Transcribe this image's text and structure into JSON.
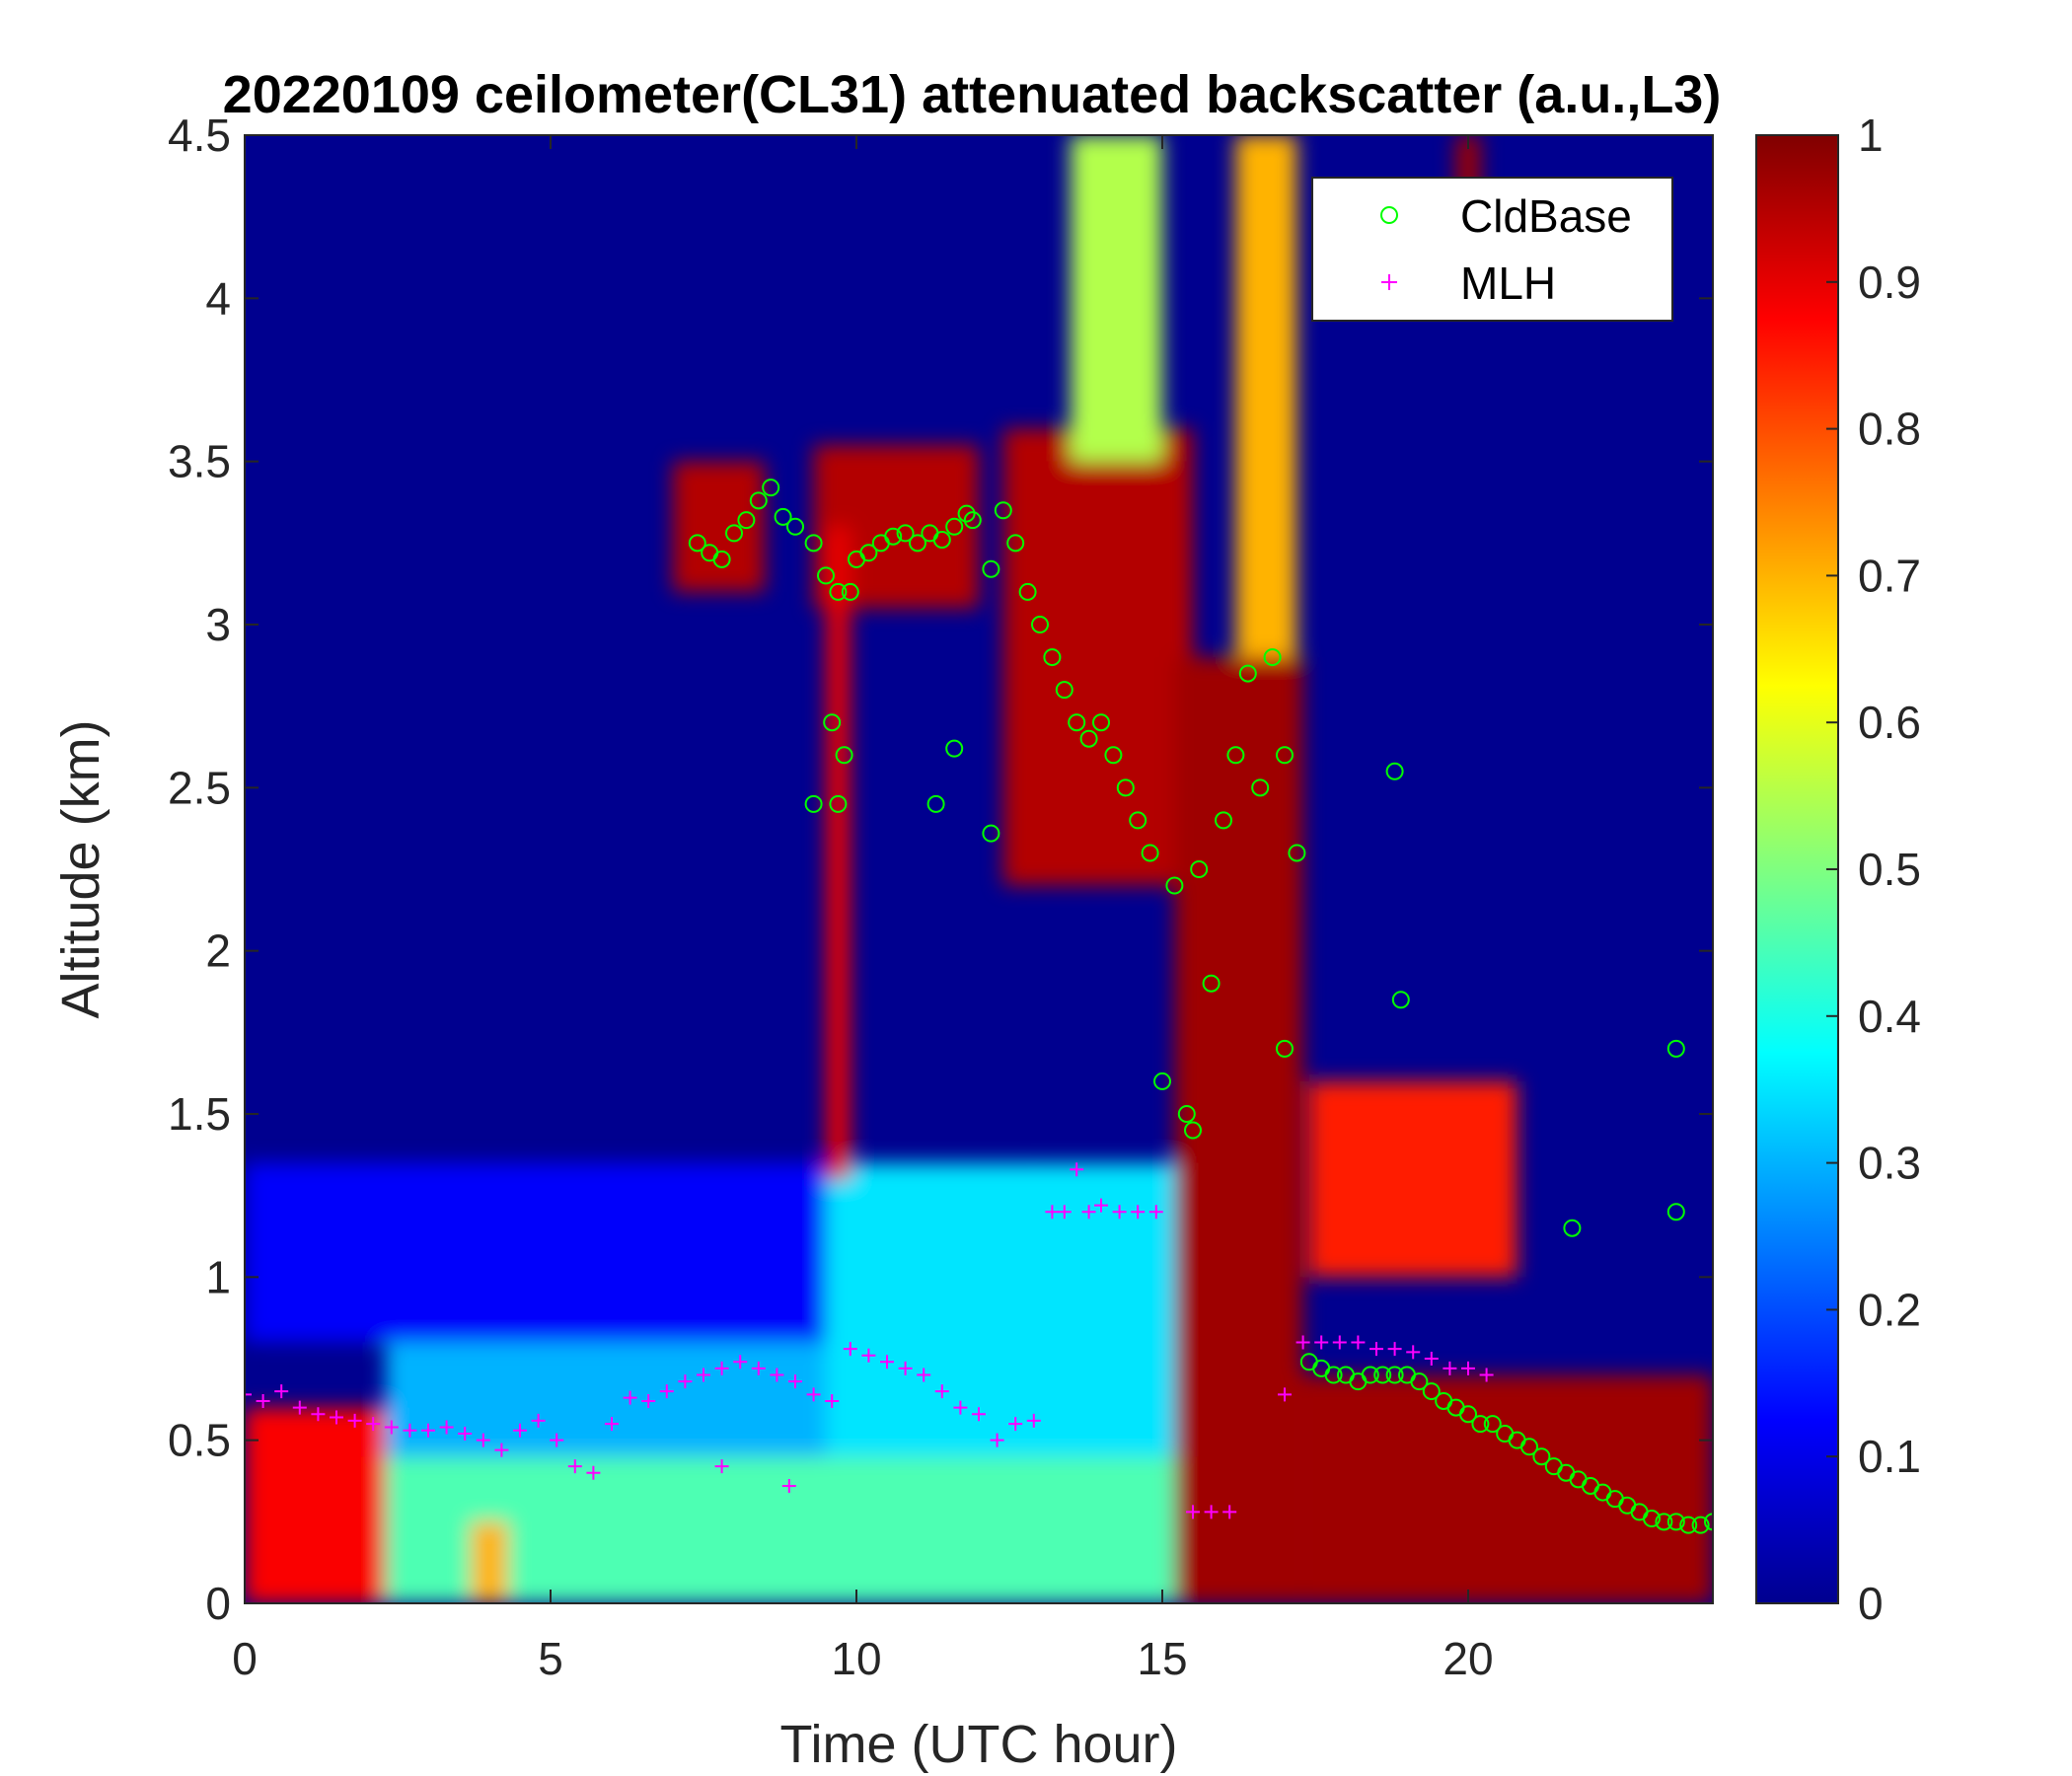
{
  "chart_data": {
    "type": "heatmap",
    "title": "20220109 ceilometer(CL31) attenuated backscatter (a.u.,L3)",
    "xlabel": "Time (UTC hour)",
    "ylabel": "Altitude (km)",
    "xlim": [
      0,
      24
    ],
    "ylim": [
      0,
      4.5
    ],
    "xticks": [
      "0",
      "5",
      "10",
      "15",
      "20"
    ],
    "yticks": [
      "0",
      "0.5",
      "1",
      "1.5",
      "2",
      "2.5",
      "3",
      "3.5",
      "4",
      "4.5"
    ],
    "colorbar": {
      "colormap": "jet",
      "range": [
        0,
        1
      ],
      "ticks": [
        "0",
        "0.1",
        "0.2",
        "0.3",
        "0.4",
        "0.5",
        "0.6",
        "0.7",
        "0.8",
        "0.9",
        "1"
      ]
    },
    "legend": {
      "position": "top-right",
      "entries": [
        {
          "name": "CldBase",
          "marker": "circle",
          "color": "#00ff00"
        },
        {
          "name": "MLH",
          "marker": "plus",
          "color": "#ff00ff"
        }
      ]
    },
    "background_regions": [
      {
        "x0": 0,
        "x1": 2.3,
        "y0": 0,
        "y1": 0.6,
        "value": 0.88
      },
      {
        "x0": 2.3,
        "x1": 15.3,
        "y0": 0,
        "y1": 0.45,
        "value": 0.45
      },
      {
        "x0": 2.3,
        "x1": 9.5,
        "y0": 0.45,
        "y1": 0.8,
        "value": 0.3
      },
      {
        "x0": 0,
        "x1": 13,
        "y0": 0.8,
        "y1": 1.35,
        "value": 0.12
      },
      {
        "x0": 9.5,
        "x1": 15.3,
        "y0": 0.45,
        "y1": 1.35,
        "value": 0.35
      },
      {
        "x0": 3.7,
        "x1": 4.3,
        "y0": 0,
        "y1": 0.25,
        "value": 0.7
      },
      {
        "x0": 7.0,
        "x1": 8.5,
        "y0": 3.1,
        "y1": 3.5,
        "value": 0.95
      },
      {
        "x0": 9.3,
        "x1": 12.0,
        "y0": 3.05,
        "y1": 3.55,
        "value": 0.95
      },
      {
        "x0": 9.5,
        "x1": 9.9,
        "y0": 1.3,
        "y1": 3.3,
        "value": 0.9
      },
      {
        "x0": 12.4,
        "x1": 15.5,
        "y0": 2.2,
        "y1": 3.6,
        "value": 0.95
      },
      {
        "x0": 13.5,
        "x1": 15.0,
        "y0": 3.5,
        "y1": 4.5,
        "value": 0.55
      },
      {
        "x0": 15.2,
        "x1": 17.3,
        "y0": 0,
        "y1": 2.9,
        "value": 0.97
      },
      {
        "x0": 16.2,
        "x1": 17.2,
        "y0": 2.9,
        "y1": 4.5,
        "value": 0.7
      },
      {
        "x0": 17.3,
        "x1": 24,
        "y0": 0,
        "y1": 0.7,
        "value": 0.97
      },
      {
        "x0": 17.4,
        "x1": 20.8,
        "y0": 1.0,
        "y1": 1.6,
        "value": 0.85
      },
      {
        "x0": 19.8,
        "x1": 20.2,
        "y0": 4.3,
        "y1": 4.5,
        "value": 0.97
      }
    ],
    "series": [
      {
        "name": "CldBase",
        "x": [
          7.4,
          7.6,
          7.8,
          8.0,
          8.2,
          8.4,
          8.6,
          8.8,
          9.0,
          9.3,
          9.5,
          9.6,
          9.7,
          9.8,
          9.9,
          10.0,
          10.2,
          10.4,
          10.6,
          10.8,
          11.0,
          11.2,
          11.4,
          11.6,
          11.8,
          11.9,
          12.2,
          12.4,
          12.6,
          12.8,
          13.0,
          13.2,
          13.4,
          13.6,
          13.8,
          14.0,
          14.2,
          14.4,
          14.6,
          14.8,
          15.0,
          15.2,
          15.4,
          15.5,
          15.6,
          15.8,
          16.0,
          16.2,
          16.4,
          16.6,
          16.8,
          17.0,
          17.2,
          17.4,
          17.6,
          17.8,
          18.0,
          18.2,
          18.4,
          18.6,
          18.8,
          19.0,
          19.2,
          19.4,
          19.6,
          19.8,
          20.0,
          20.2,
          20.4,
          20.6,
          20.8,
          21.0,
          21.2,
          21.4,
          21.6,
          21.8,
          22.0,
          22.2,
          22.4,
          22.6,
          22.8,
          23.0,
          23.2,
          23.4,
          23.6,
          23.8,
          24.0,
          9.7,
          9.3,
          11.3,
          11.6,
          12.2,
          17.0,
          18.9,
          18.8,
          23.4,
          23.4,
          21.7
        ],
        "y": [
          3.25,
          3.22,
          3.2,
          3.28,
          3.32,
          3.38,
          3.42,
          3.33,
          3.3,
          3.25,
          3.15,
          2.7,
          3.1,
          2.6,
          3.1,
          3.2,
          3.22,
          3.25,
          3.27,
          3.28,
          3.25,
          3.28,
          3.26,
          3.3,
          3.34,
          3.32,
          3.17,
          3.35,
          3.25,
          3.1,
          3.0,
          2.9,
          2.8,
          2.7,
          2.65,
          2.7,
          2.6,
          2.5,
          2.4,
          2.3,
          1.6,
          2.2,
          1.5,
          1.45,
          2.25,
          1.9,
          2.4,
          2.6,
          2.85,
          2.5,
          2.9,
          2.6,
          2.3,
          0.74,
          0.72,
          0.7,
          0.7,
          0.68,
          0.7,
          0.7,
          0.7,
          0.7,
          0.68,
          0.65,
          0.62,
          0.6,
          0.58,
          0.55,
          0.55,
          0.52,
          0.5,
          0.48,
          0.45,
          0.42,
          0.4,
          0.38,
          0.36,
          0.34,
          0.32,
          0.3,
          0.28,
          0.26,
          0.25,
          0.25,
          0.24,
          0.24,
          0.25,
          2.45,
          2.45,
          2.45,
          2.62,
          2.36,
          1.7,
          1.85,
          2.55,
          1.7,
          1.2,
          1.15
        ]
      },
      {
        "name": "MLH",
        "x": [
          0.0,
          0.3,
          0.6,
          0.9,
          1.2,
          1.5,
          1.8,
          2.1,
          2.4,
          2.7,
          3.0,
          3.3,
          3.6,
          3.9,
          4.2,
          4.5,
          4.8,
          5.1,
          5.4,
          5.7,
          6.0,
          6.3,
          6.6,
          6.9,
          7.2,
          7.5,
          7.8,
          8.1,
          8.4,
          8.7,
          9.0,
          9.3,
          9.6,
          9.9,
          10.2,
          10.5,
          10.8,
          11.1,
          11.4,
          11.7,
          12.0,
          12.3,
          12.6,
          12.9,
          13.2,
          13.4,
          13.6,
          13.8,
          14.0,
          14.3,
          14.6,
          14.9,
          15.5,
          15.8,
          16.1,
          17.0,
          17.3,
          17.6,
          17.9,
          18.2,
          18.5,
          18.8,
          19.1,
          19.4,
          19.7,
          20.0,
          20.3,
          7.8,
          8.9
        ],
        "y": [
          0.64,
          0.62,
          0.65,
          0.6,
          0.58,
          0.57,
          0.56,
          0.55,
          0.54,
          0.53,
          0.53,
          0.54,
          0.52,
          0.5,
          0.47,
          0.53,
          0.56,
          0.5,
          0.42,
          0.4,
          0.55,
          0.63,
          0.62,
          0.65,
          0.68,
          0.7,
          0.72,
          0.74,
          0.72,
          0.7,
          0.68,
          0.64,
          0.62,
          0.78,
          0.76,
          0.74,
          0.72,
          0.7,
          0.65,
          0.6,
          0.58,
          0.5,
          0.55,
          0.56,
          1.2,
          1.2,
          1.33,
          1.2,
          1.22,
          1.2,
          1.2,
          1.2,
          0.28,
          0.28,
          0.28,
          0.64,
          0.8,
          0.8,
          0.8,
          0.8,
          0.78,
          0.78,
          0.77,
          0.75,
          0.72,
          0.72,
          0.7,
          0.42,
          0.36
        ]
      }
    ]
  }
}
